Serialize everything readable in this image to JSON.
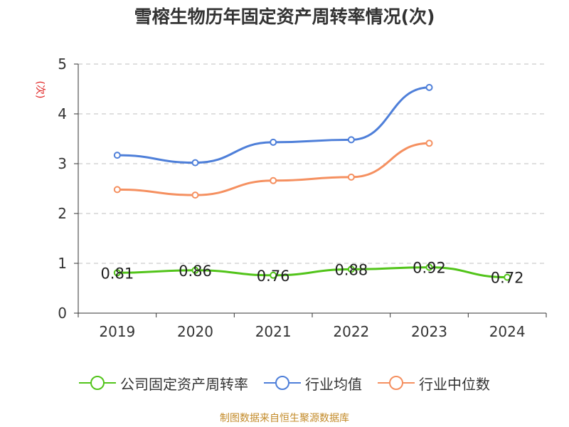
{
  "chart_data": {
    "type": "line",
    "title": "雪榕生物历年固定资产周转率情况(次)",
    "ylabel": "(次)",
    "categories": [
      "2019",
      "2020",
      "2021",
      "2022",
      "2023",
      "2024"
    ],
    "ylim": [
      0,
      5
    ],
    "yticks": [
      "0",
      "1",
      "2",
      "3",
      "4",
      "5"
    ],
    "grid": true,
    "legend_position": "bottom",
    "series": [
      {
        "name": "公司固定资产周转率",
        "color": "#52c41a",
        "values": [
          0.81,
          0.86,
          0.76,
          0.88,
          0.92,
          0.72
        ],
        "labels": [
          "0.81",
          "0.86",
          "0.76",
          "0.88",
          "0.92",
          "0.72"
        ]
      },
      {
        "name": "行业均值",
        "color": "#4e7fd9",
        "values": [
          3.17,
          3.02,
          3.43,
          3.48,
          4.53,
          null
        ]
      },
      {
        "name": "行业中位数",
        "color": "#f59060",
        "values": [
          2.48,
          2.37,
          2.66,
          2.73,
          3.41,
          null
        ]
      }
    ]
  },
  "source": "制图数据来自恒生聚源数据库"
}
